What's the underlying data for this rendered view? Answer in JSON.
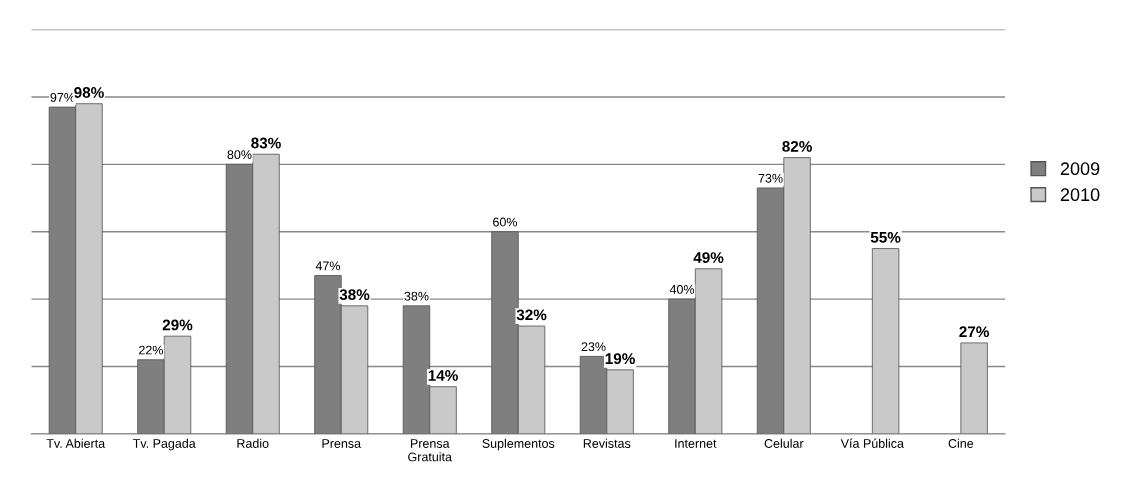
{
  "chart_data": {
    "type": "bar",
    "categories": [
      "Tv. Abierta",
      "Tv. Pagada",
      "Radio",
      "Prensa",
      "Prensa\nGratuita",
      "Suplementos",
      "Revistas",
      "Internet",
      "Celular",
      "Vía Pública",
      "Cine"
    ],
    "series": [
      {
        "name": "2009",
        "color": "#7f7f7f",
        "values": [
          97,
          22,
          80,
          47,
          38,
          60,
          23,
          40,
          73,
          null,
          null
        ],
        "value_labels": [
          "97%",
          "22%",
          "80%",
          "47%",
          "38%",
          "60%",
          "23%",
          "40%",
          "73%",
          null,
          null
        ]
      },
      {
        "name": "2010",
        "color": "#c9c9c9",
        "values": [
          98,
          29,
          83,
          38,
          14,
          32,
          19,
          49,
          82,
          55,
          27
        ],
        "value_labels": [
          "98%",
          "29%",
          "83%",
          "38%",
          "14%",
          "32%",
          "19%",
          "49%",
          "82%",
          "55%",
          "27%"
        ]
      }
    ],
    "ylim": [
      0,
      120
    ],
    "yticks": [
      {
        "value": 0,
        "label": null
      },
      {
        "value": 20,
        "label": null
      },
      {
        "value": 40,
        "label": null
      },
      {
        "value": 60,
        "label": null
      },
      {
        "value": 80,
        "label": null
      },
      {
        "value": 100,
        "label": null
      },
      {
        "value": 120,
        "label": null
      }
    ],
    "grid": "y",
    "legend": "right",
    "tick_labels": "x"
  }
}
